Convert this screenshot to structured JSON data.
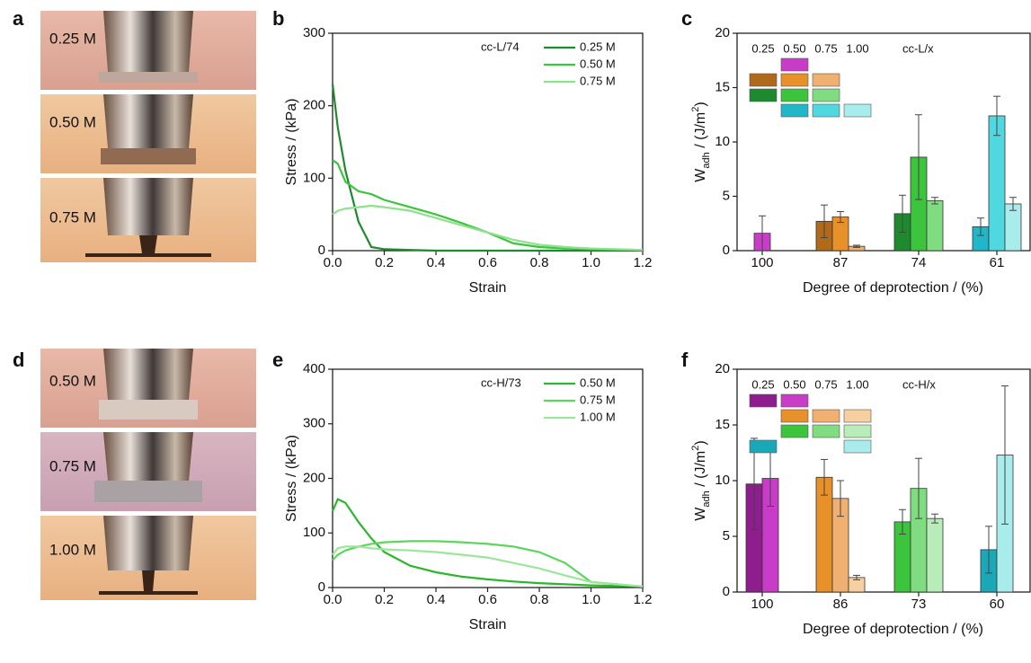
{
  "panel_labels": [
    "a",
    "b",
    "c",
    "d",
    "e",
    "f"
  ],
  "photos": {
    "a": [
      "0.25 M",
      "0.50 M",
      "0.75 M"
    ],
    "d": [
      "0.50 M",
      "0.75 M",
      "1.00 M"
    ]
  },
  "chart_data": [
    {
      "type": "line",
      "annotation": "cc-L/74",
      "xlabel": "Strain",
      "ylabel": "Stress / (kPa)",
      "xlim": [
        0,
        1.2
      ],
      "xticks": [
        {
          "value": 0,
          "label": "0.0"
        },
        0.2,
        0.4,
        0.6,
        0.8,
        {
          "value": 1,
          "label": "1.0"
        },
        1.2
      ],
      "ylim": [
        0,
        300
      ],
      "yticks": [
        0,
        100,
        200,
        300
      ],
      "x": [
        0,
        0.02,
        0.05,
        0.1,
        0.15,
        0.2,
        0.3,
        0.4,
        0.5,
        0.6,
        0.7,
        0.8,
        0.9,
        1.0,
        1.2
      ],
      "series": [
        {
          "name": "0.25 M",
          "color": "#1e8a2e",
          "values": [
            230,
            170,
            110,
            40,
            5,
            2,
            1,
            0,
            0,
            0,
            0,
            0,
            0,
            0,
            0
          ]
        },
        {
          "name": "0.50 M",
          "color": "#3cc43c",
          "values": [
            125,
            120,
            95,
            82,
            78,
            70,
            60,
            50,
            38,
            25,
            10,
            5,
            3,
            2,
            1
          ]
        },
        {
          "name": "0.75 M",
          "color": "#8fe08f",
          "values": [
            50,
            55,
            58,
            60,
            62,
            60,
            55,
            45,
            35,
            25,
            15,
            8,
            5,
            3,
            1
          ]
        }
      ]
    },
    {
      "type": "bar",
      "annotation": "cc-L/x",
      "xlabel": "Degree of deprotection / (%)",
      "ylabel": {
        "main": "W",
        "sub": "adh",
        "text": " / (J/m",
        "sup": "2",
        "end": ")"
      },
      "ylim": [
        0,
        20
      ],
      "yticks": [
        0,
        5,
        10,
        15,
        20
      ],
      "categories": [
        "100",
        "87",
        "74",
        "61"
      ],
      "series": [
        {
          "name": "0.25",
          "colors": [
            "#8e1e8e",
            "#b06a1a",
            "#1e8a2e",
            "#1a9aa8"
          ],
          "values": [
            null,
            2.7,
            3.4,
            null
          ],
          "errors": [
            null,
            1.5,
            1.7,
            null
          ]
        },
        {
          "name": "0.50",
          "colors": [
            "#c83cc8",
            "#e8902a",
            "#3cc43c",
            "#20b8c8"
          ],
          "values": [
            1.6,
            3.1,
            8.6,
            2.2
          ],
          "errors": [
            1.6,
            0.5,
            3.9,
            0.8
          ]
        },
        {
          "name": "0.75",
          "colors": [
            "#d880d8",
            "#f0b070",
            "#80dc80",
            "#50d8e0"
          ],
          "values": [
            null,
            0.4,
            4.6,
            12.4
          ],
          "errors": [
            null,
            0.1,
            0.3,
            1.8
          ]
        },
        {
          "name": "1.00",
          "colors": [
            "#ecc0ec",
            "#f6d0a0",
            "#b8ecb8",
            "#a8ecec"
          ],
          "values": [
            null,
            null,
            null,
            4.3
          ],
          "errors": [
            null,
            null,
            null,
            0.6
          ]
        }
      ]
    },
    {
      "type": "line",
      "annotation": "cc-H/73",
      "xlabel": "Strain",
      "ylabel": "Stress / (kPa)",
      "xlim": [
        0,
        1.2
      ],
      "xticks": [
        {
          "value": 0,
          "label": "0.0"
        },
        0.2,
        0.4,
        0.6,
        0.8,
        {
          "value": 1,
          "label": "1.0"
        },
        1.2
      ],
      "ylim": [
        0,
        400
      ],
      "yticks": [
        0,
        100,
        200,
        300,
        400
      ],
      "x": [
        0,
        0.02,
        0.05,
        0.1,
        0.15,
        0.2,
        0.3,
        0.4,
        0.5,
        0.6,
        0.7,
        0.8,
        0.9,
        1.0,
        1.2
      ],
      "series": [
        {
          "name": "0.50 M",
          "color": "#2ab82a",
          "values": [
            140,
            162,
            155,
            120,
            90,
            65,
            40,
            28,
            20,
            15,
            11,
            8,
            6,
            4,
            2
          ]
        },
        {
          "name": "0.75 M",
          "color": "#5cd65c",
          "values": [
            50,
            60,
            68,
            75,
            80,
            83,
            85,
            85,
            83,
            80,
            75,
            65,
            45,
            10,
            2
          ]
        },
        {
          "name": "1.00 M",
          "color": "#9ae69a",
          "values": [
            60,
            72,
            75,
            75,
            72,
            70,
            68,
            65,
            60,
            55,
            45,
            35,
            22,
            10,
            2
          ]
        }
      ]
    },
    {
      "type": "bar",
      "annotation": "cc-H/x",
      "xlabel": "Degree of deprotection / (%)",
      "ylabel": {
        "main": "W",
        "sub": "adh",
        "text": " / (J/m",
        "sup": "2",
        "end": ")"
      },
      "ylim": [
        0,
        20
      ],
      "yticks": [
        0,
        5,
        10,
        15,
        20
      ],
      "categories": [
        "100",
        "86",
        "73",
        "60"
      ],
      "series": [
        {
          "name": "0.25",
          "colors": [
            "#8e1e8e",
            "#b06a1a",
            "#1e8a2e",
            "#1aa8b8"
          ],
          "values": [
            9.7,
            null,
            null,
            3.8
          ],
          "errors": [
            4.1,
            null,
            null,
            2.1
          ]
        },
        {
          "name": "0.50",
          "colors": [
            "#c83cc8",
            "#e8902a",
            "#3cc43c",
            "#20b8c8"
          ],
          "values": [
            10.2,
            10.3,
            6.3,
            null
          ],
          "errors": [
            2.5,
            1.6,
            1.1,
            null
          ]
        },
        {
          "name": "0.75",
          "colors": [
            "#d880d8",
            "#f0b070",
            "#80dc80",
            "#50d8e0"
          ],
          "values": [
            null,
            8.4,
            9.3,
            null
          ],
          "errors": [
            null,
            1.6,
            2.7,
            null
          ]
        },
        {
          "name": "1.00",
          "colors": [
            "#ecc0ec",
            "#f6d0a0",
            "#b8ecb8",
            "#a8ecec"
          ],
          "values": [
            null,
            1.3,
            6.6,
            12.3
          ],
          "errors": [
            null,
            0.2,
            0.4,
            6.2
          ]
        }
      ]
    }
  ]
}
